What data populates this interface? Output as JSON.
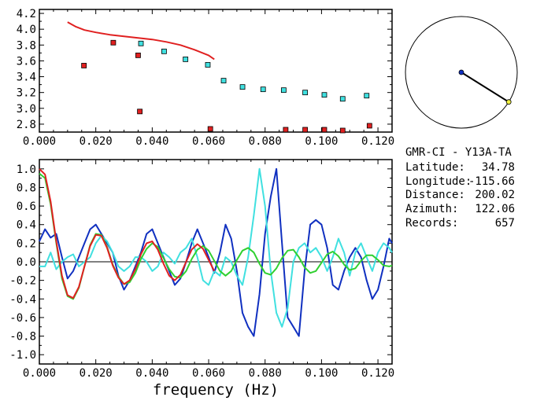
{
  "chart_data": [
    {
      "type": "scatter",
      "id": "dispersion",
      "xlim": [
        0.0,
        0.125
      ],
      "ylim": [
        2.7,
        4.25
      ],
      "xticks": [
        "0.000",
        "0.020",
        "0.040",
        "0.060",
        "0.080",
        "0.100",
        "0.120"
      ],
      "yticks": [
        "2.8",
        "3.0",
        "3.2",
        "3.4",
        "3.6",
        "3.8",
        "4.0",
        "4.2"
      ],
      "xtick_values": [
        0.0,
        0.02,
        0.04,
        0.06,
        0.08,
        0.1,
        0.12
      ],
      "ytick_values": [
        2.8,
        3.0,
        3.2,
        3.4,
        3.6,
        3.8,
        4.0,
        4.2
      ],
      "grid": false,
      "series": [
        {
          "style": "line",
          "color": "#e02020",
          "x": [
            0.01,
            0.013,
            0.016,
            0.02,
            0.025,
            0.03,
            0.035,
            0.04,
            0.045,
            0.05,
            0.055,
            0.06,
            0.062
          ],
          "y": [
            4.09,
            4.03,
            3.99,
            3.96,
            3.93,
            3.91,
            3.89,
            3.87,
            3.84,
            3.8,
            3.74,
            3.67,
            3.62
          ]
        },
        {
          "style": "markers",
          "color": "#e02020",
          "x": [
            0.0158,
            0.0262,
            0.035,
            0.0356,
            0.0606,
            0.0873,
            0.0942,
            0.101,
            0.1075,
            0.117
          ],
          "y": [
            3.54,
            3.83,
            3.67,
            2.96,
            2.74,
            2.73,
            2.73,
            2.73,
            2.72,
            2.78
          ]
        },
        {
          "style": "markers",
          "color": "#40e0e0",
          "x": [
            0.036,
            0.0442,
            0.0518,
            0.0597,
            0.0653,
            0.072,
            0.0793,
            0.0866,
            0.0942,
            0.101,
            0.1075,
            0.116
          ],
          "y": [
            3.82,
            3.72,
            3.62,
            3.55,
            3.35,
            3.27,
            3.24,
            3.23,
            3.2,
            3.17,
            3.12,
            3.16
          ]
        }
      ]
    },
    {
      "type": "line",
      "id": "spectra",
      "xlim": [
        0.0,
        0.125
      ],
      "ylim": [
        -1.1,
        1.1
      ],
      "xticks": [
        "0.000",
        "0.020",
        "0.040",
        "0.060",
        "0.080",
        "0.100",
        "0.120"
      ],
      "yticks": [
        "1.0",
        "0.8",
        "0.6",
        "0.4",
        "0.2",
        "0.0",
        "-0.2",
        "-0.4",
        "-0.6",
        "-0.8",
        "-1.0"
      ],
      "xtick_values": [
        0.0,
        0.02,
        0.04,
        0.06,
        0.08,
        0.1,
        0.12
      ],
      "ytick_values": [
        1.0,
        0.8,
        0.6,
        0.4,
        0.2,
        0.0,
        -0.2,
        -0.4,
        -0.6,
        -0.8,
        -1.0
      ],
      "xlabel": "frequency (Hz)",
      "zero_line": true,
      "series": [
        {
          "color": "#1030c0",
          "x": [
            0.0,
            0.002,
            0.004,
            0.006,
            0.008,
            0.01,
            0.012,
            0.014,
            0.016,
            0.018,
            0.02,
            0.022,
            0.024,
            0.026,
            0.028,
            0.03,
            0.032,
            0.034,
            0.036,
            0.038,
            0.04,
            0.042,
            0.044,
            0.046,
            0.048,
            0.05,
            0.052,
            0.054,
            0.056,
            0.058,
            0.06,
            0.062,
            0.064,
            0.066,
            0.068,
            0.07,
            0.072,
            0.074,
            0.076,
            0.078,
            0.08,
            0.082,
            0.084,
            0.086,
            0.088,
            0.09,
            0.092,
            0.094,
            0.096,
            0.098,
            0.1,
            0.102,
            0.104,
            0.106,
            0.108,
            0.11,
            0.112,
            0.114,
            0.116,
            0.118,
            0.12,
            0.122,
            0.124,
            0.125
          ],
          "y": [
            0.22,
            0.35,
            0.26,
            0.3,
            0.05,
            -0.18,
            -0.1,
            0.05,
            0.2,
            0.35,
            0.4,
            0.3,
            0.2,
            0.1,
            -0.15,
            -0.3,
            -0.2,
            -0.05,
            0.1,
            0.3,
            0.35,
            0.2,
            0.05,
            -0.1,
            -0.25,
            -0.18,
            0.0,
            0.2,
            0.35,
            0.2,
            0.05,
            -0.12,
            0.1,
            0.4,
            0.25,
            -0.1,
            -0.55,
            -0.7,
            -0.8,
            -0.35,
            0.3,
            0.7,
            1.0,
            0.2,
            -0.6,
            -0.7,
            -0.8,
            -0.1,
            0.4,
            0.45,
            0.4,
            0.15,
            -0.25,
            -0.3,
            -0.1,
            0.05,
            0.15,
            0.05,
            -0.2,
            -0.4,
            -0.3,
            -0.05,
            0.25,
            0.2
          ]
        },
        {
          "color": "#40e0e0",
          "x": [
            0.0,
            0.002,
            0.004,
            0.006,
            0.008,
            0.01,
            0.012,
            0.014,
            0.016,
            0.018,
            0.02,
            0.022,
            0.024,
            0.026,
            0.028,
            0.03,
            0.032,
            0.034,
            0.036,
            0.038,
            0.04,
            0.042,
            0.044,
            0.046,
            0.048,
            0.05,
            0.052,
            0.054,
            0.056,
            0.058,
            0.06,
            0.062,
            0.064,
            0.066,
            0.068,
            0.07,
            0.072,
            0.074,
            0.076,
            0.078,
            0.08,
            0.082,
            0.084,
            0.086,
            0.088,
            0.09,
            0.092,
            0.094,
            0.096,
            0.098,
            0.1,
            0.102,
            0.104,
            0.106,
            0.108,
            0.11,
            0.112,
            0.114,
            0.116,
            0.118,
            0.12,
            0.122,
            0.124,
            0.125
          ],
          "y": [
            -0.05,
            -0.05,
            0.1,
            -0.08,
            0.0,
            0.05,
            0.08,
            -0.05,
            0.0,
            0.05,
            0.2,
            0.28,
            0.22,
            0.1,
            -0.05,
            -0.1,
            -0.05,
            0.05,
            0.05,
            0.0,
            -0.1,
            -0.05,
            0.1,
            0.05,
            -0.02,
            0.1,
            0.15,
            0.25,
            0.05,
            -0.2,
            -0.25,
            -0.1,
            -0.15,
            0.05,
            0.0,
            -0.15,
            -0.25,
            0.05,
            0.5,
            1.0,
            0.6,
            -0.1,
            -0.55,
            -0.7,
            -0.5,
            0.0,
            0.15,
            0.2,
            0.1,
            0.15,
            0.05,
            -0.1,
            0.05,
            0.25,
            0.1,
            -0.15,
            0.1,
            0.2,
            0.05,
            -0.1,
            0.1,
            0.2,
            0.15,
            0.1
          ]
        },
        {
          "color": "#30d030",
          "x": [
            0.0,
            0.002,
            0.004,
            0.006,
            0.008,
            0.01,
            0.012,
            0.014,
            0.016,
            0.018,
            0.02,
            0.022,
            0.024,
            0.026,
            0.028,
            0.03,
            0.032,
            0.034,
            0.036,
            0.038,
            0.04,
            0.042,
            0.044,
            0.046,
            0.048,
            0.05,
            0.052,
            0.054,
            0.056,
            0.058,
            0.06,
            0.062,
            0.064,
            0.066,
            0.068,
            0.07,
            0.072,
            0.074,
            0.076,
            0.078,
            0.08,
            0.082,
            0.084,
            0.086,
            0.088,
            0.09,
            0.092,
            0.094,
            0.096,
            0.098,
            0.1,
            0.102,
            0.104,
            0.106,
            0.108,
            0.11,
            0.112,
            0.114,
            0.116,
            0.118,
            0.12,
            0.122,
            0.124,
            0.125
          ],
          "y": [
            0.95,
            0.9,
            0.62,
            0.2,
            -0.18,
            -0.37,
            -0.4,
            -0.28,
            -0.05,
            0.18,
            0.3,
            0.29,
            0.16,
            -0.03,
            -0.16,
            -0.24,
            -0.22,
            -0.12,
            0.03,
            0.14,
            0.2,
            0.16,
            0.04,
            -0.08,
            -0.16,
            -0.17,
            -0.1,
            0.03,
            0.13,
            0.17,
            0.12,
            0.01,
            -0.1,
            -0.15,
            -0.1,
            0.02,
            0.12,
            0.15,
            0.1,
            -0.02,
            -0.12,
            -0.14,
            -0.07,
            0.04,
            0.12,
            0.13,
            0.05,
            -0.06,
            -0.12,
            -0.1,
            -0.01,
            0.08,
            0.11,
            0.06,
            -0.03,
            -0.09,
            -0.07,
            0.01,
            0.07,
            0.07,
            0.02,
            -0.04,
            -0.05,
            -0.04
          ]
        },
        {
          "color": "#e02020",
          "x": [
            0.0,
            0.002,
            0.004,
            0.006,
            0.008,
            0.01,
            0.012,
            0.014,
            0.016,
            0.018,
            0.02,
            0.022,
            0.024,
            0.026,
            0.028,
            0.03,
            0.032,
            0.034,
            0.036,
            0.038,
            0.04,
            0.042,
            0.044,
            0.046,
            0.048,
            0.05,
            0.052,
            0.054,
            0.056,
            0.058,
            0.06,
            0.062
          ],
          "y": [
            1.0,
            0.94,
            0.65,
            0.22,
            -0.15,
            -0.36,
            -0.39,
            -0.27,
            -0.05,
            0.17,
            0.29,
            0.28,
            0.15,
            -0.04,
            -0.17,
            -0.24,
            -0.2,
            -0.08,
            0.08,
            0.2,
            0.22,
            0.13,
            -0.02,
            -0.15,
            -0.2,
            -0.14,
            0.0,
            0.13,
            0.19,
            0.14,
            0.02,
            -0.1
          ]
        }
      ]
    }
  ],
  "azimuth_plot": {
    "azimuth_deg": 122.06,
    "line_color": "#000000",
    "center_dot_color": "#1030c0",
    "end_dot_color": "#f0f040"
  },
  "station_info": {
    "title": "GMR-CI  -  Y13A-TA",
    "rows": [
      {
        "label": "Latitude:",
        "value": "34.78"
      },
      {
        "label": "Longitude:",
        "value": "-115.66"
      },
      {
        "label": "Distance:",
        "value": "200.02"
      },
      {
        "label": "Azimuth:",
        "value": "122.06"
      },
      {
        "label": "Records:",
        "value": "657"
      }
    ]
  }
}
